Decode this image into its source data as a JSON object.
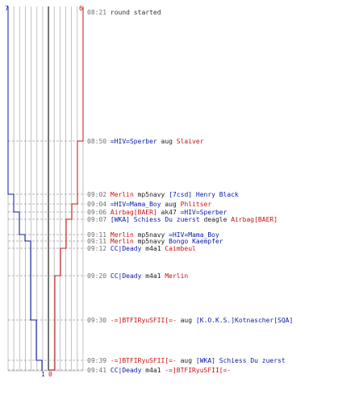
{
  "scores": {
    "blue_start": "7",
    "red_start": "6",
    "blue_end": "1",
    "red_end": "0"
  },
  "colors": {
    "blue": "#0a1aa6",
    "red": "#cc1111",
    "time": "#707070",
    "grid": "#b4b4b4",
    "dash": "#a0a0a0",
    "center_line": "#555555"
  },
  "log": [
    {
      "time": "08:21",
      "parts": [
        {
          "t": "round started",
          "c": "meta"
        }
      ]
    },
    {
      "time": "08:50",
      "parts": [
        {
          "t": "=HIV=Sperber",
          "c": "blue"
        },
        {
          "t": " aug ",
          "c": "weap"
        },
        {
          "t": "Slaiver",
          "c": "red"
        }
      ]
    },
    {
      "time": "09:02",
      "parts": [
        {
          "t": "Merlin",
          "c": "red"
        },
        {
          "t": " mp5navy ",
          "c": "weap"
        },
        {
          "t": "[7csd] Henry Black",
          "c": "blue"
        }
      ]
    },
    {
      "time": "09:04",
      "parts": [
        {
          "t": "=HIV=Mama_Boy",
          "c": "blue"
        },
        {
          "t": " aug ",
          "c": "weap"
        },
        {
          "t": "Phlitser",
          "c": "red"
        }
      ]
    },
    {
      "time": "09:06",
      "parts": [
        {
          "t": "Airbag[BAER]",
          "c": "red"
        },
        {
          "t": " ak47 ",
          "c": "weap"
        },
        {
          "t": "=HIV=Sperber",
          "c": "blue"
        }
      ]
    },
    {
      "time": "09:07",
      "parts": [
        {
          "t": "[WKA] Schiess Du zuerst",
          "c": "blue"
        },
        {
          "t": " deagle ",
          "c": "weap"
        },
        {
          "t": "Airbag[BAER]",
          "c": "red"
        }
      ]
    },
    {
      "time": "09:11",
      "parts": [
        {
          "t": "Merlin",
          "c": "red"
        },
        {
          "t": " mp5navy ",
          "c": "weap"
        },
        {
          "t": "=HIV=Mama_Boy",
          "c": "blue"
        }
      ]
    },
    {
      "time": "09:11",
      "parts": [
        {
          "t": "Merlin",
          "c": "red"
        },
        {
          "t": " mp5navy ",
          "c": "weap"
        },
        {
          "t": "Bongo Kaempfer",
          "c": "blue"
        }
      ]
    },
    {
      "time": "09:12",
      "parts": [
        {
          "t": "CC|Deady",
          "c": "blue"
        },
        {
          "t": " m4a1 ",
          "c": "weap"
        },
        {
          "t": "Caimbeul",
          "c": "red"
        }
      ]
    },
    {
      "time": "09:20",
      "parts": [
        {
          "t": "CC|Deady",
          "c": "blue"
        },
        {
          "t": " m4a1 ",
          "c": "weap"
        },
        {
          "t": "Merlin",
          "c": "red"
        }
      ]
    },
    {
      "time": "09:30",
      "parts": [
        {
          "t": "-=]BTFIRyuSFII[=-",
          "c": "red"
        },
        {
          "t": " aug ",
          "c": "weap"
        },
        {
          "t": "[K.O.K.S.]Kotnascher[SQA]",
          "c": "blue"
        }
      ]
    },
    {
      "time": "09:39",
      "parts": [
        {
          "t": "-=]BTFIRyuSFII[=-",
          "c": "red"
        },
        {
          "t": " aug ",
          "c": "weap"
        },
        {
          "t": "[WKA] Schiess Du zuerst",
          "c": "blue"
        }
      ]
    },
    {
      "time": "09:41",
      "parts": [
        {
          "t": "CC|Deady",
          "c": "blue"
        },
        {
          "t": " m4a1 ",
          "c": "weap"
        },
        {
          "t": "-=]BTFIRyuSFII[=-",
          "c": "red"
        }
      ]
    }
  ]
}
